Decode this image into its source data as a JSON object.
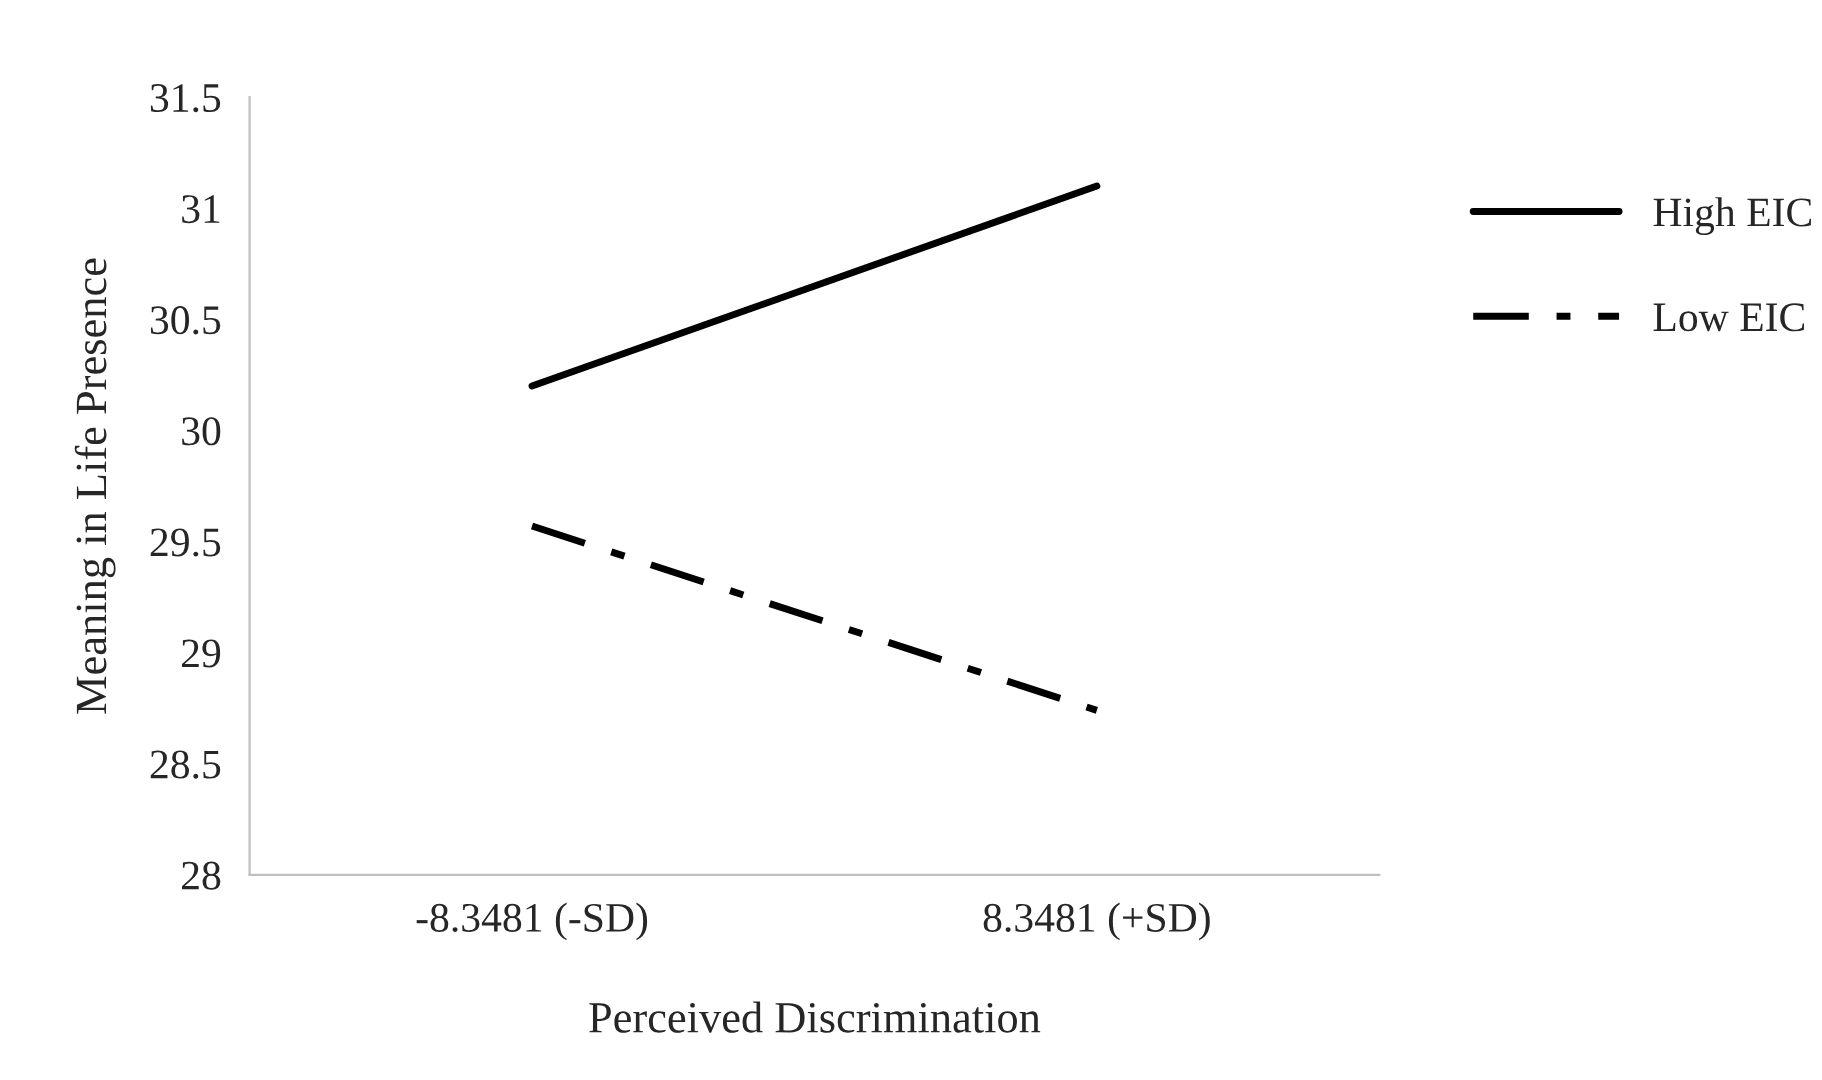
{
  "chart_data": {
    "type": "line",
    "xlabel": "Perceived Discrimination",
    "ylabel": "Meaning in Life Presence",
    "categories": [
      "-8.3481 (-SD)",
      "8.3481 (+SD)"
    ],
    "series": [
      {
        "name": "High EIC",
        "color": "#000000",
        "values": [
          30.2,
          31.1
        ],
        "line_style": "solid"
      },
      {
        "name": "Low EIC",
        "color": "#000000",
        "values": [
          29.57,
          28.74
        ],
        "line_style": "dashed"
      }
    ],
    "ylim": [
      28,
      31.5
    ],
    "yticks": [
      28,
      {
        "value": 28.5,
        "label": "28.5"
      },
      29,
      {
        "value": 29.5,
        "label": "29.5"
      },
      30,
      {
        "value": 30.5,
        "label": "30.5"
      },
      31,
      {
        "value": 31.5,
        "label": "31.5"
      }
    ],
    "grid": false,
    "legend": "right",
    "marker": "none"
  }
}
